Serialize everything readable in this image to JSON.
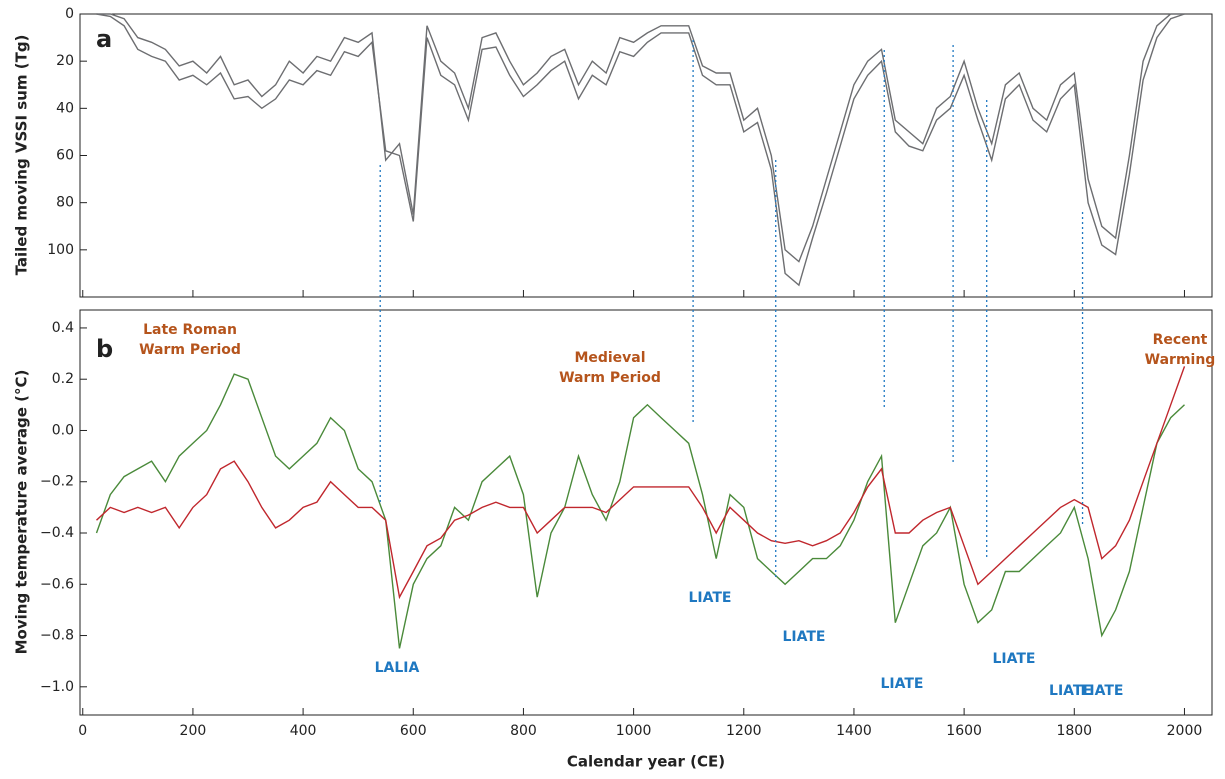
{
  "chart_data": [
    {
      "type": "line",
      "panel_label": "a",
      "y_label": "Tailed moving VSSI sum (Tg)",
      "y_inverted": true,
      "xlim": [
        -5,
        2050
      ],
      "xticks": [
        0,
        200,
        400,
        600,
        800,
        1000,
        1200,
        1400,
        1600,
        1800,
        2000
      ],
      "ylim": [
        0,
        120
      ],
      "yticks": [
        0,
        20,
        40,
        60,
        80,
        100
      ],
      "x": [
        25,
        50,
        75,
        100,
        125,
        150,
        175,
        200,
        225,
        250,
        275,
        300,
        325,
        350,
        375,
        400,
        425,
        450,
        475,
        500,
        525,
        550,
        575,
        600,
        625,
        650,
        675,
        700,
        725,
        750,
        775,
        800,
        825,
        850,
        875,
        900,
        925,
        950,
        975,
        1000,
        1025,
        1050,
        1075,
        1100,
        1125,
        1150,
        1175,
        1200,
        1225,
        1250,
        1275,
        1300,
        1325,
        1350,
        1375,
        1400,
        1425,
        1450,
        1475,
        1500,
        1525,
        1550,
        1575,
        1600,
        1625,
        1650,
        1675,
        1700,
        1725,
        1750,
        1775,
        1800,
        1825,
        1850,
        1875,
        1900,
        1925,
        1950,
        1975,
        2000
      ],
      "series": [
        {
          "color": "#6d6e71",
          "values": [
            0,
            0,
            2,
            10,
            12,
            15,
            22,
            20,
            25,
            18,
            30,
            28,
            35,
            30,
            20,
            25,
            18,
            20,
            10,
            12,
            8,
            62,
            55,
            85,
            5,
            20,
            25,
            40,
            10,
            8,
            20,
            30,
            25,
            18,
            15,
            30,
            20,
            25,
            10,
            12,
            8,
            5,
            5,
            5,
            22,
            25,
            25,
            45,
            40,
            60,
            100,
            105,
            90,
            70,
            50,
            30,
            20,
            15,
            45,
            50,
            55,
            40,
            35,
            20,
            40,
            55,
            30,
            25,
            40,
            45,
            30,
            25,
            70,
            90,
            95,
            60,
            20,
            5,
            0,
            0
          ]
        },
        {
          "color": "#6d6e71",
          "values": [
            0,
            1,
            5,
            15,
            18,
            20,
            28,
            26,
            30,
            25,
            36,
            35,
            40,
            36,
            28,
            30,
            24,
            26,
            16,
            18,
            12,
            58,
            60,
            88,
            10,
            26,
            30,
            45,
            15,
            14,
            26,
            35,
            30,
            24,
            20,
            36,
            26,
            30,
            16,
            18,
            12,
            8,
            8,
            8,
            26,
            30,
            30,
            50,
            46,
            66,
            110,
            115,
            95,
            76,
            56,
            36,
            26,
            20,
            50,
            56,
            58,
            45,
            40,
            26,
            45,
            62,
            36,
            30,
            45,
            50,
            36,
            30,
            80,
            98,
            102,
            68,
            28,
            10,
            2,
            0
          ]
        }
      ]
    },
    {
      "type": "line",
      "panel_label": "b",
      "y_label": "Moving temperature average (°C)",
      "x_label": "Calendar year (CE)",
      "xlim": [
        -5,
        2050
      ],
      "xticks": [
        0,
        200,
        400,
        600,
        800,
        1000,
        1200,
        1400,
        1600,
        1800,
        2000
      ],
      "ylim": [
        -1.11,
        0.47
      ],
      "yticks": [
        0.4,
        0.2,
        {
          "value": 0,
          "label": "0.0"
        },
        {
          "value": -0.2,
          "label": "−0.2"
        },
        {
          "value": -0.4,
          "label": "−0.4"
        },
        {
          "value": -0.6,
          "label": "−0.6"
        },
        {
          "value": -0.8,
          "label": "−0.8"
        },
        {
          "value": -1,
          "label": "−1.0"
        }
      ],
      "x": [
        25,
        50,
        75,
        100,
        125,
        150,
        175,
        200,
        225,
        250,
        275,
        300,
        325,
        350,
        375,
        400,
        425,
        450,
        475,
        500,
        525,
        550,
        575,
        600,
        625,
        650,
        675,
        700,
        725,
        750,
        775,
        800,
        825,
        850,
        875,
        900,
        925,
        950,
        975,
        1000,
        1025,
        1050,
        1075,
        1100,
        1125,
        1150,
        1175,
        1200,
        1225,
        1250,
        1275,
        1300,
        1325,
        1350,
        1375,
        1400,
        1425,
        1450,
        1475,
        1500,
        1525,
        1550,
        1575,
        1600,
        1625,
        1650,
        1675,
        1700,
        1725,
        1750,
        1775,
        1800,
        1825,
        1850,
        1875,
        1900,
        1925,
        1950,
        1975,
        2000
      ],
      "series": [
        {
          "color": "#4a8a3a",
          "values": [
            -0.4,
            -0.25,
            -0.18,
            -0.15,
            -0.12,
            -0.2,
            -0.1,
            -0.05,
            0,
            0.1,
            0.22,
            0.2,
            0.05,
            -0.1,
            -0.15,
            -0.1,
            -0.05,
            0.05,
            0,
            -0.15,
            -0.2,
            -0.35,
            -0.85,
            -0.6,
            -0.5,
            -0.45,
            -0.3,
            -0.35,
            -0.2,
            -0.15,
            -0.1,
            -0.25,
            -0.65,
            -0.4,
            -0.3,
            -0.1,
            -0.25,
            -0.35,
            -0.2,
            0.05,
            0.1,
            0.05,
            0,
            -0.05,
            -0.25,
            -0.5,
            -0.25,
            -0.3,
            -0.5,
            -0.55,
            -0.6,
            -0.55,
            -0.5,
            -0.5,
            -0.45,
            -0.35,
            -0.2,
            -0.1,
            -0.75,
            -0.6,
            -0.45,
            -0.4,
            -0.3,
            -0.6,
            -0.75,
            -0.7,
            -0.55,
            -0.55,
            -0.5,
            -0.45,
            -0.4,
            -0.3,
            -0.5,
            -0.8,
            -0.7,
            -0.55,
            -0.3,
            -0.05,
            0.05,
            0.1
          ]
        },
        {
          "color": "#c0272d",
          "values": [
            -0.35,
            -0.3,
            -0.32,
            -0.3,
            -0.32,
            -0.3,
            -0.38,
            -0.3,
            -0.25,
            -0.15,
            -0.12,
            -0.2,
            -0.3,
            -0.38,
            -0.35,
            -0.3,
            -0.28,
            -0.2,
            -0.25,
            -0.3,
            -0.3,
            -0.35,
            -0.65,
            -0.55,
            -0.45,
            -0.42,
            -0.35,
            -0.33,
            -0.3,
            -0.28,
            -0.3,
            -0.3,
            -0.4,
            -0.35,
            -0.3,
            -0.3,
            -0.3,
            -0.32,
            -0.27,
            -0.22,
            -0.22,
            -0.22,
            -0.22,
            -0.22,
            -0.3,
            -0.4,
            -0.3,
            -0.35,
            -0.4,
            -0.43,
            -0.44,
            -0.43,
            -0.45,
            -0.43,
            -0.4,
            -0.32,
            -0.22,
            -0.15,
            -0.4,
            -0.4,
            -0.35,
            -0.32,
            -0.3,
            -0.45,
            -0.6,
            -0.55,
            -0.5,
            -0.45,
            -0.4,
            -0.35,
            -0.3,
            -0.27,
            -0.3,
            -0.5,
            -0.45,
            -0.35,
            -0.2,
            -0.05,
            0.1,
            0.25
          ]
        }
      ],
      "period_labels": [
        [
          "Late Roman",
          "Warm Period"
        ],
        [
          "Medieval",
          "Warm Period"
        ],
        [
          "Recent",
          "Warming"
        ]
      ],
      "events": [
        {
          "x": 540,
          "label": "LALIA"
        },
        {
          "x": 1108,
          "label": "LIATE"
        },
        {
          "x": 1258,
          "label": "LIATE"
        },
        {
          "x": 1455,
          "label": "LIATE"
        },
        {
          "x": 1580,
          "label": "LIATE"
        },
        {
          "x": 1641,
          "label": "LIATE"
        },
        {
          "x": 1815,
          "label": "LIATE"
        }
      ]
    }
  ]
}
